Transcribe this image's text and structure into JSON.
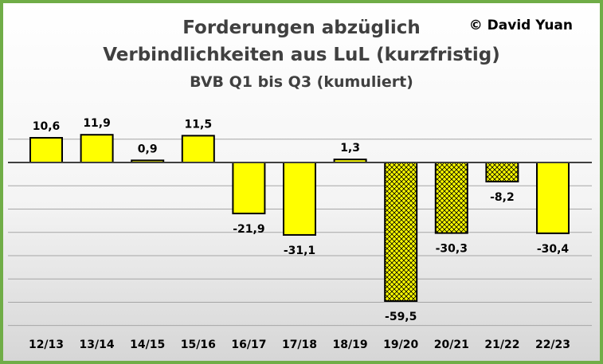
{
  "title_line1": "Forderungen  abzüglich",
  "title_line2": "Verbindlichkeiten aus LuL  (kurzfristig)",
  "subtitle": "BVB Q1 bis Q3 (kumuliert)",
  "copyright": "© David Yuan",
  "colors": {
    "frame": "#70ad47",
    "bar_fill": "#ffff00",
    "bar_stroke": "#000000",
    "gridline": "#a6a6a6",
    "title": "#404040"
  },
  "chart_data": {
    "type": "bar",
    "categories": [
      "12/13",
      "13/14",
      "14/15",
      "15/16",
      "16/17",
      "17/18",
      "18/19",
      "19/20",
      "20/21",
      "21/22",
      "22/23"
    ],
    "values": [
      10.6,
      11.9,
      0.9,
      11.5,
      -21.9,
      -31.1,
      1.3,
      -59.5,
      -30.3,
      -8.2,
      -30.4
    ],
    "value_labels": [
      "10,6",
      "11,9",
      "0,9",
      "11,5",
      "-21,9",
      "-31,1",
      "1,3",
      "-59,5",
      "-30,3",
      "-8,2",
      "-30,4"
    ],
    "patterned": [
      false,
      false,
      false,
      false,
      false,
      false,
      false,
      true,
      true,
      true,
      false
    ],
    "ylim": [
      -70,
      20
    ],
    "grid": true,
    "title": "Forderungen abzüglich Verbindlichkeiten aus LuL (kurzfristig)",
    "subtitle": "BVB Q1 bis Q3 (kumuliert)",
    "xlabel": "",
    "ylabel": ""
  }
}
